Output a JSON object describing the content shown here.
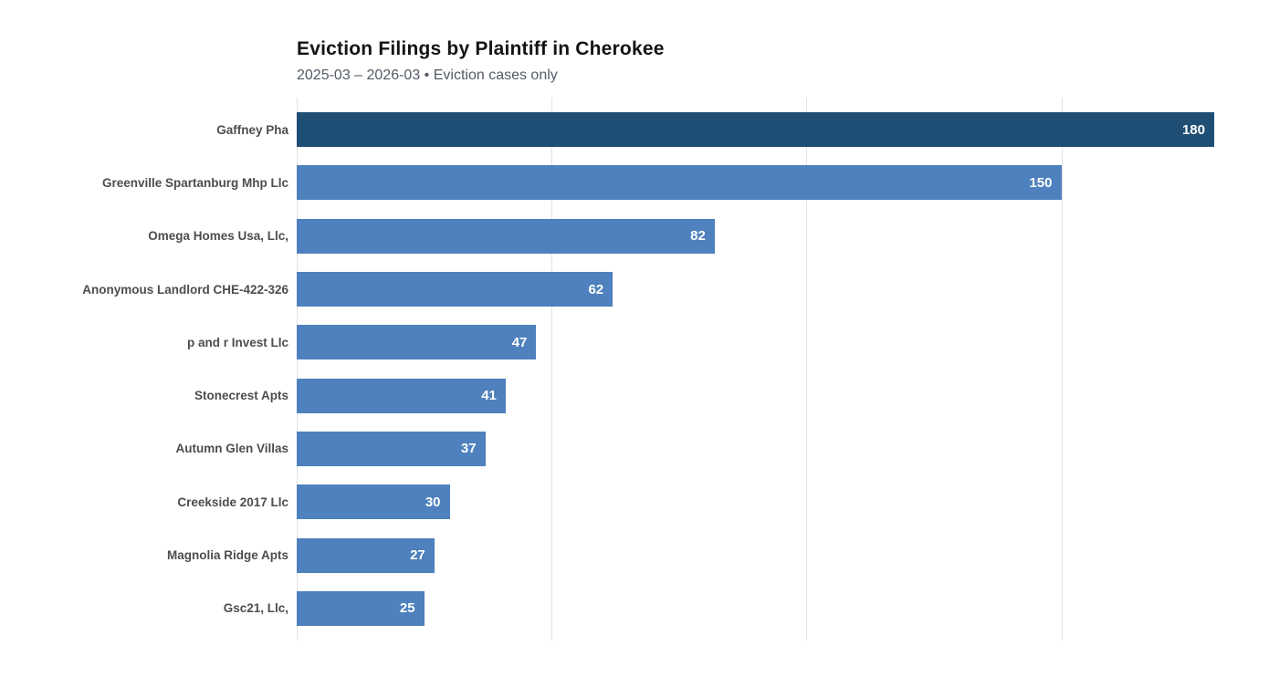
{
  "header": {
    "title": "Eviction Filings by Plaintiff in Cherokee",
    "subtitle": "2025-03 – 2026-03 • Eviction cases only"
  },
  "chart_data": {
    "type": "bar",
    "orientation": "horizontal",
    "title": "Eviction Filings by Plaintiff in Cherokee",
    "subtitle": "2025-03 – 2026-03 • Eviction cases only",
    "categories": [
      "Gaffney Pha",
      "Greenville Spartanburg Mhp Llc",
      "Omega Homes Usa, Llc,",
      "Anonymous Landlord CHE-422-326",
      "p and r Invest Llc",
      "Stonecrest Apts",
      "Autumn Glen Villas",
      "Creekside 2017 Llc",
      "Magnolia Ridge Apts",
      "Gsc21, Llc,"
    ],
    "values": [
      180,
      150,
      82,
      62,
      47,
      41,
      37,
      30,
      27,
      25
    ],
    "xlabel": "",
    "ylabel": "",
    "xlim": [
      0,
      180
    ],
    "x_gridlines": [
      0,
      50,
      100,
      150
    ],
    "grid": true,
    "legend": false,
    "value_label_position": "inside-end",
    "colors": {
      "bar": "#4e81bd",
      "highlight_bar": "#1f4e74",
      "highlight_index": 0,
      "grid": "#e2e2e2",
      "category_label": "#4d4d4d",
      "value_label": "#ffffff",
      "title": "#141414",
      "subtitle": "#535b66",
      "background": "#ffffff"
    }
  }
}
